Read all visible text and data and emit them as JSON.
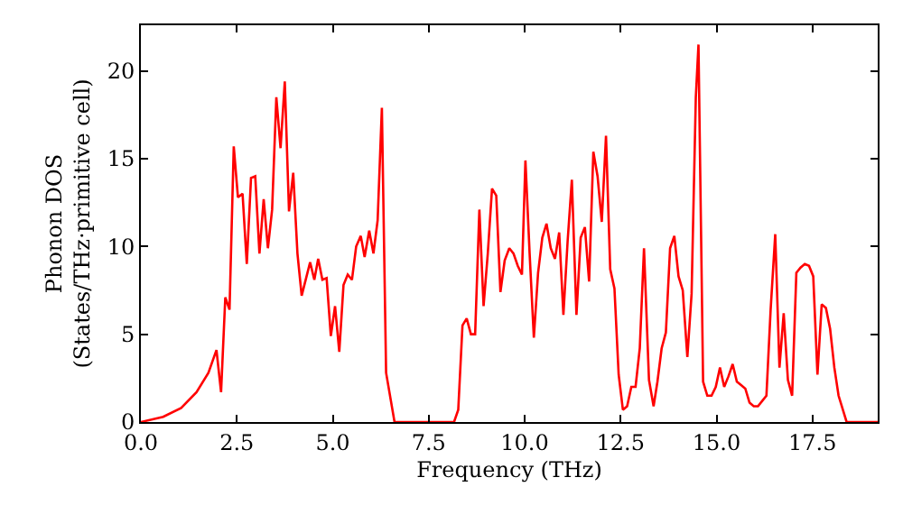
{
  "chart_data": {
    "type": "line",
    "xlabel": "Frequency (THz)",
    "ylabel": "Phonon DOS\n(States/THz·primitive cell)",
    "xlim": [
      0,
      19.2
    ],
    "ylim": [
      0,
      22.6
    ],
    "xticks": [
      {
        "value": 0,
        "label": "0.0"
      },
      {
        "value": 2.5,
        "label": "2.5"
      },
      {
        "value": 5,
        "label": "5.0"
      },
      {
        "value": 7.5,
        "label": "7.5"
      },
      {
        "value": 10,
        "label": "10.0"
      },
      {
        "value": 12.5,
        "label": "12.5"
      },
      {
        "value": 15,
        "label": "15.0"
      },
      {
        "value": 17.5,
        "label": "17.5"
      }
    ],
    "yticks": [
      0,
      5,
      10,
      15,
      20
    ],
    "grid": false,
    "marker": "none",
    "line_style": "solid",
    "series": [
      {
        "color": "#ff0000",
        "x": [
          0,
          0.58,
          1.05,
          1.45,
          1.76,
          1.97,
          2.09,
          2.2,
          2.31,
          2.42,
          2.53,
          2.65,
          2.76,
          2.87,
          2.98,
          3.09,
          3.2,
          3.31,
          3.42,
          3.53,
          3.64,
          3.75,
          3.86,
          3.97,
          4.08,
          4.19,
          4.41,
          4.52,
          4.62,
          4.73,
          4.84,
          4.95,
          5.06,
          5.17,
          5.28,
          5.39,
          5.5,
          5.61,
          5.73,
          5.83,
          5.95,
          6.06,
          6.17,
          6.28,
          6.39,
          6.61,
          8.16,
          8.27,
          8.38,
          8.49,
          8.6,
          8.71,
          8.82,
          8.93,
          9.04,
          9.15,
          9.26,
          9.37,
          9.48,
          9.6,
          9.71,
          9.82,
          9.93,
          10.02,
          10.13,
          10.24,
          10.35,
          10.46,
          10.57,
          10.68,
          10.79,
          10.9,
          11.01,
          11.12,
          11.23,
          11.35,
          11.46,
          11.57,
          11.68,
          11.79,
          11.9,
          12.01,
          12.12,
          12.23,
          12.34,
          12.45,
          12.56,
          12.67,
          12.78,
          12.89,
          13.0,
          13.11,
          13.24,
          13.36,
          13.46,
          13.57,
          13.68,
          13.79,
          13.9,
          14.01,
          14.12,
          14.24,
          14.35,
          14.46,
          14.53,
          14.65,
          14.76,
          14.87,
          14.98,
          15.09,
          15.2,
          15.31,
          15.42,
          15.53,
          15.64,
          15.75,
          15.86,
          15.97,
          16.08,
          16.19,
          16.3,
          16.41,
          16.53,
          16.64,
          16.75,
          16.86,
          16.97,
          17.08,
          17.19,
          17.3,
          17.41,
          17.52,
          17.63,
          17.74,
          17.85,
          17.96,
          18.07,
          18.18,
          18.39,
          19.2
        ],
        "values": [
          0,
          0.3,
          0.8,
          1.7,
          2.8,
          4.1,
          1.7,
          7.1,
          6.4,
          15.7,
          12.8,
          13.0,
          9.0,
          13.9,
          14.0,
          9.6,
          12.7,
          9.9,
          12.1,
          18.5,
          15.6,
          19.4,
          12.0,
          14.2,
          9.6,
          7.2,
          9.1,
          8.1,
          9.3,
          8.1,
          8.2,
          4.9,
          6.6,
          4.0,
          7.8,
          8.4,
          8.1,
          10.0,
          10.6,
          9.4,
          10.9,
          9.6,
          11.5,
          17.9,
          2.8,
          0,
          0,
          0.7,
          5.5,
          5.9,
          5.0,
          5.0,
          12.1,
          6.6,
          9.6,
          13.3,
          12.9,
          7.4,
          9.2,
          9.9,
          9.6,
          8.9,
          8.4,
          14.9,
          9.6,
          4.8,
          8.5,
          10.5,
          11.3,
          9.9,
          9.3,
          10.8,
          6.1,
          10.3,
          13.8,
          6.1,
          10.5,
          11.1,
          8.0,
          15.4,
          14.0,
          11.4,
          16.3,
          8.7,
          7.6,
          2.7,
          0.7,
          0.9,
          2.0,
          2.0,
          4.2,
          9.9,
          2.4,
          0.9,
          2.3,
          4.2,
          5.1,
          9.9,
          10.6,
          8.3,
          7.5,
          3.7,
          7.3,
          18.5,
          21.5,
          2.3,
          1.5,
          1.5,
          2.0,
          3.1,
          2.0,
          2.6,
          3.3,
          2.3,
          2.1,
          1.9,
          1.1,
          0.9,
          0.9,
          1.2,
          1.5,
          6.4,
          10.7,
          3.1,
          6.2,
          2.4,
          1.5,
          8.5,
          8.8,
          9.0,
          8.9,
          8.3,
          2.7,
          6.7,
          6.5,
          5.3,
          3.1,
          1.5,
          0,
          0
        ]
      }
    ]
  }
}
